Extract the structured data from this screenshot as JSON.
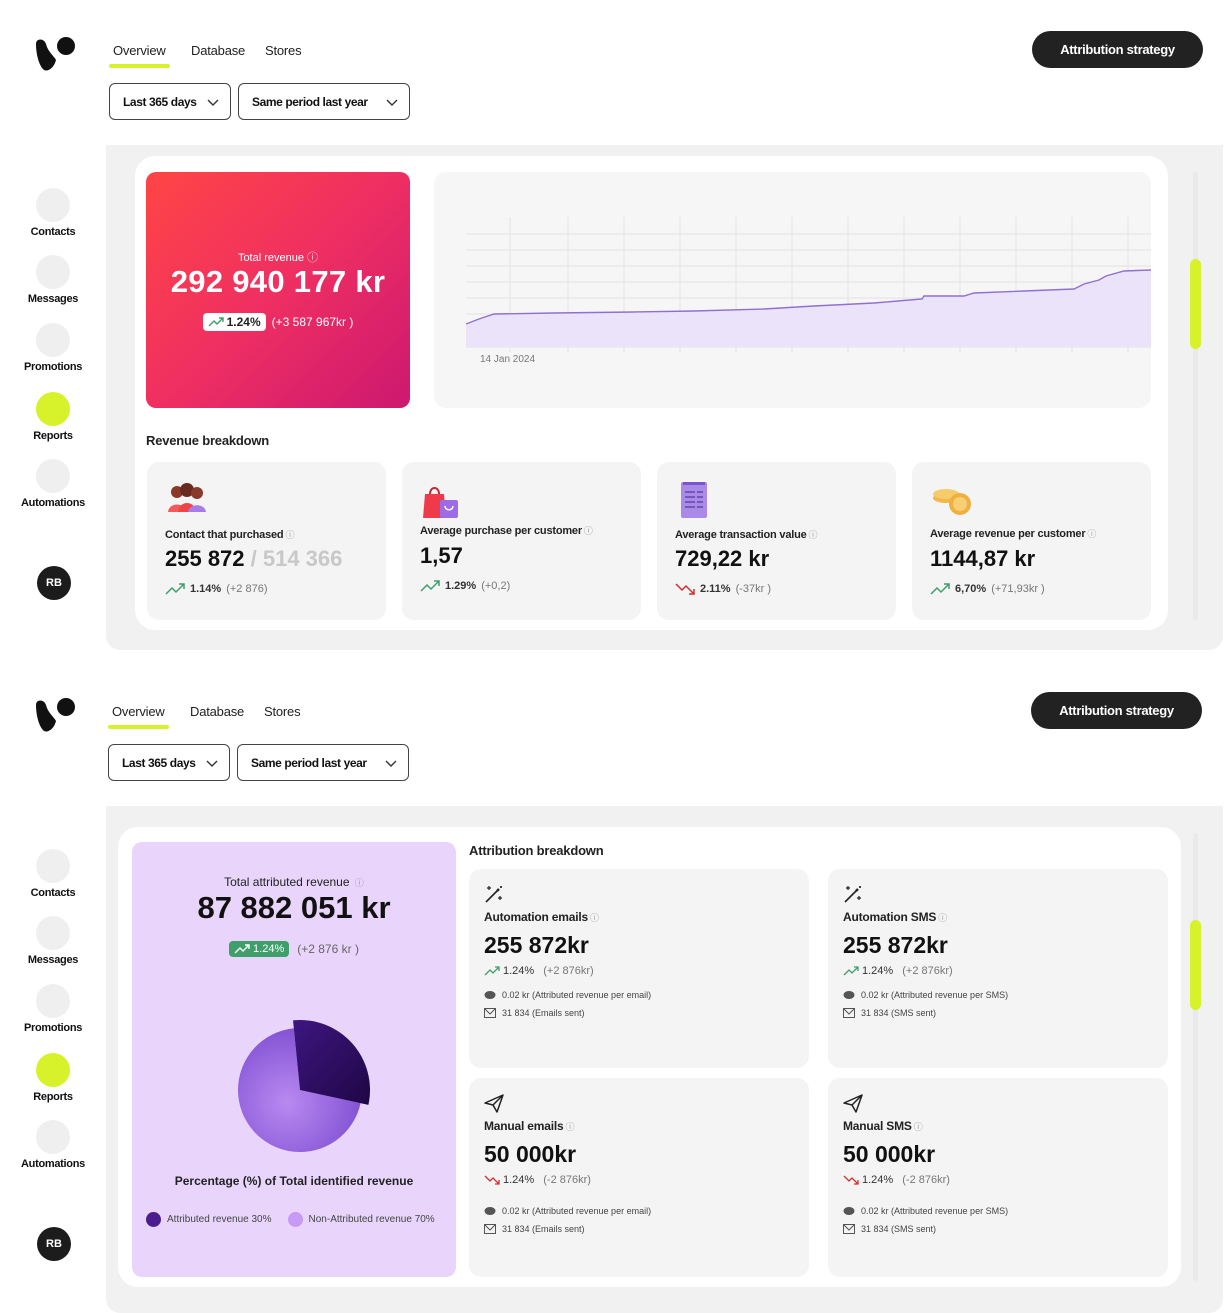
{
  "nav": {
    "tabs": [
      "Overview",
      "Database",
      "Stores"
    ],
    "attribution_button": "Attribution strategy",
    "period_dropdown": "Last 365 days",
    "compare_dropdown": "Same period last year"
  },
  "sidebar": {
    "items": [
      "Contacts",
      "Messages",
      "Promotions",
      "Reports",
      "Automations"
    ],
    "active": "Reports",
    "avatar_initials": "RB"
  },
  "report1": {
    "total_revenue": {
      "label": "Total revenue",
      "value": "292 940 177 kr",
      "change_pct": "1.24%",
      "change_abs": "(+3 587 967kr )"
    },
    "chart": {
      "start_label": "14 Jan 2024"
    },
    "breakdown_title": "Revenue breakdown",
    "metrics": [
      {
        "label": "Contact that purchased",
        "value": "255 872",
        "value_secondary": " / 514 366",
        "change_pct": "1.14%",
        "change_abs": "(+2 876)",
        "trend": "up",
        "icon": "people-icon"
      },
      {
        "label": "Average purchase per customer",
        "value": "1,57",
        "value_secondary": "",
        "change_pct": "1.29%",
        "change_abs": "(+0,2)",
        "trend": "up",
        "icon": "shopping-bag-icon"
      },
      {
        "label": "Average transaction value",
        "value": "729,22 kr",
        "value_secondary": "",
        "change_pct": "2.11%",
        "change_abs": "(-37kr )",
        "trend": "down",
        "icon": "receipt-icon"
      },
      {
        "label": "Average revenue per customer",
        "value": "1144,87 kr",
        "value_secondary": "",
        "change_pct": "6,70%",
        "change_abs": "(+71,93kr )",
        "trend": "up",
        "icon": "coins-icon"
      }
    ]
  },
  "report2": {
    "total_attributed": {
      "label": "Total attributed revenue",
      "value": "87 882 051 kr",
      "change_pct": "1.24%",
      "change_abs": "(+2 876 kr )"
    },
    "pie": {
      "title": "Percentage (%) of Total identified revenue",
      "slices": [
        {
          "name": "Attributed revenue 30%",
          "value": 30,
          "color": "#2e0d63"
        },
        {
          "name": "Non-Attributed revenue 70%",
          "value": 70,
          "color": "#a577e8"
        }
      ]
    },
    "breakdown_title": "Attribution breakdown",
    "channels": [
      {
        "label": "Automation emails",
        "value": "255 872kr",
        "change_pct": "1.24%",
        "change_abs": "(+2 876kr)",
        "trend": "up",
        "row1": "0.02 kr (Attributed revenue per email)",
        "row2": "31 834 (Emails sent)",
        "icon": "magic-wand-icon"
      },
      {
        "label": "Automation SMS",
        "value": "255 872kr",
        "change_pct": "1.24%",
        "change_abs": "(+2 876kr)",
        "trend": "up",
        "row1": "0.02 kr (Attributed revenue per SMS)",
        "row2": "31 834 (SMS sent)",
        "icon": "magic-wand-icon"
      },
      {
        "label": "Manual emails",
        "value": "50 000kr",
        "change_pct": "1.24%",
        "change_abs": "(-2 876kr)",
        "trend": "down",
        "row1": "0.02 kr (Attributed revenue per email)",
        "row2": "31 834 (Emails sent)",
        "icon": "paper-plane-icon"
      },
      {
        "label": "Manual SMS",
        "value": "50 000kr",
        "change_pct": "1.24%",
        "change_abs": "(-2 876kr)",
        "trend": "down",
        "row1": "0.02 kr (Attributed revenue per SMS)",
        "row2": "31 834 (SMS sent)",
        "icon": "paper-plane-icon"
      }
    ]
  },
  "colors": {
    "accent": "#d7f22b",
    "up": "#3e9f6b",
    "down": "#d62d2d",
    "revenue_gradient_start": "#ff4545",
    "revenue_gradient_end": "#cc1870",
    "attributed_bg": "#e9d5fb"
  }
}
